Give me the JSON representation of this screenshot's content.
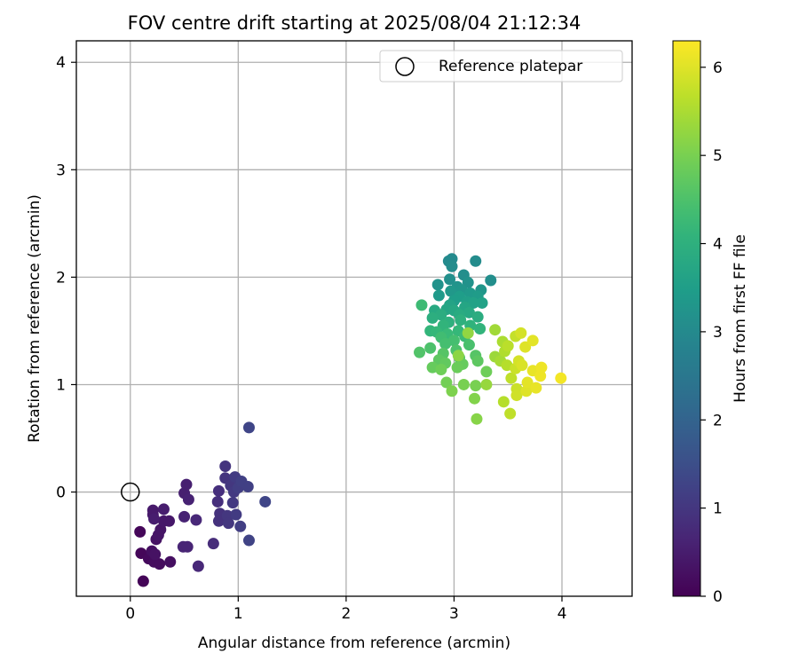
{
  "chart_data": {
    "type": "scatter",
    "title": "FOV centre drift starting at 2025/08/04 21:12:34",
    "xlabel": "Angular distance from reference (arcmin)",
    "ylabel": "Rotation from reference (arcmin)",
    "xlim": [
      -0.5,
      4.65
    ],
    "ylim": [
      -0.97,
      4.2
    ],
    "xticks": [
      0,
      1,
      2,
      3,
      4
    ],
    "xtick_labels": [
      "0",
      "1",
      "2",
      "3",
      "4"
    ],
    "yticks": [
      0,
      1,
      2,
      3,
      4
    ],
    "ytick_labels": [
      "0",
      "1",
      "2",
      "3",
      "4"
    ],
    "grid": true,
    "legend": {
      "position": "top-right",
      "entries": [
        "Reference platepar"
      ]
    },
    "reference_point": {
      "x": 0,
      "y": 0
    },
    "colorbar": {
      "label": "Hours from first FF file",
      "colormap": "viridis",
      "range": [
        0,
        6.3
      ],
      "ticks": [
        0,
        1,
        2,
        3,
        4,
        5,
        6
      ],
      "tick_labels": [
        "0",
        "1",
        "2",
        "3",
        "4",
        "5",
        "6"
      ]
    },
    "points": [
      {
        "x": 0.12,
        "y": -0.83,
        "c": 0.05
      },
      {
        "x": 0.1,
        "y": -0.57,
        "c": 0.1
      },
      {
        "x": 0.09,
        "y": -0.37,
        "c": 0.1
      },
      {
        "x": 0.17,
        "y": -0.62,
        "c": 0.15
      },
      {
        "x": 0.22,
        "y": -0.65,
        "c": 0.2
      },
      {
        "x": 0.27,
        "y": -0.67,
        "c": 0.2
      },
      {
        "x": 0.37,
        "y": -0.65,
        "c": 0.25
      },
      {
        "x": 0.2,
        "y": -0.55,
        "c": 0.25
      },
      {
        "x": 0.23,
        "y": -0.58,
        "c": 0.3
      },
      {
        "x": 0.24,
        "y": -0.44,
        "c": 0.3
      },
      {
        "x": 0.26,
        "y": -0.4,
        "c": 0.35
      },
      {
        "x": 0.28,
        "y": -0.35,
        "c": 0.35
      },
      {
        "x": 0.31,
        "y": -0.27,
        "c": 0.4
      },
      {
        "x": 0.36,
        "y": -0.27,
        "c": 0.4
      },
      {
        "x": 0.21,
        "y": -0.17,
        "c": 0.45
      },
      {
        "x": 0.21,
        "y": -0.21,
        "c": 0.45
      },
      {
        "x": 0.22,
        "y": -0.25,
        "c": 0.5
      },
      {
        "x": 0.31,
        "y": -0.16,
        "c": 0.5
      },
      {
        "x": 0.5,
        "y": -0.01,
        "c": 0.55
      },
      {
        "x": 0.52,
        "y": 0.07,
        "c": 0.55
      },
      {
        "x": 0.54,
        "y": -0.07,
        "c": 0.6
      },
      {
        "x": 0.5,
        "y": -0.23,
        "c": 0.6
      },
      {
        "x": 0.49,
        "y": -0.51,
        "c": 0.65
      },
      {
        "x": 0.53,
        "y": -0.51,
        "c": 0.65
      },
      {
        "x": 0.63,
        "y": -0.69,
        "c": 0.7
      },
      {
        "x": 0.61,
        "y": -0.26,
        "c": 0.7
      },
      {
        "x": 0.77,
        "y": -0.48,
        "c": 0.8
      },
      {
        "x": 0.81,
        "y": -0.09,
        "c": 0.85
      },
      {
        "x": 0.82,
        "y": 0.01,
        "c": 0.85
      },
      {
        "x": 0.83,
        "y": -0.2,
        "c": 0.9
      },
      {
        "x": 0.82,
        "y": -0.27,
        "c": 0.9
      },
      {
        "x": 0.88,
        "y": 0.24,
        "c": 0.95
      },
      {
        "x": 0.88,
        "y": 0.13,
        "c": 0.95
      },
      {
        "x": 0.9,
        "y": -0.22,
        "c": 1.0
      },
      {
        "x": 0.91,
        "y": -0.29,
        "c": 1.0
      },
      {
        "x": 0.93,
        "y": 0.06,
        "c": 1.0
      },
      {
        "x": 0.95,
        "y": -0.1,
        "c": 1.05
      },
      {
        "x": 0.96,
        "y": 0.0,
        "c": 1.05
      },
      {
        "x": 0.97,
        "y": 0.14,
        "c": 1.1
      },
      {
        "x": 0.98,
        "y": -0.21,
        "c": 1.1
      },
      {
        "x": 1.02,
        "y": -0.32,
        "c": 1.15
      },
      {
        "x": 1.0,
        "y": 0.04,
        "c": 1.15
      },
      {
        "x": 1.03,
        "y": 0.1,
        "c": 1.2
      },
      {
        "x": 1.09,
        "y": 0.05,
        "c": 1.2
      },
      {
        "x": 1.1,
        "y": -0.45,
        "c": 1.25
      },
      {
        "x": 1.1,
        "y": 0.6,
        "c": 1.3
      },
      {
        "x": 1.25,
        "y": -0.09,
        "c": 1.3
      },
      {
        "x": 2.98,
        "y": 2.17,
        "c": 3.0
      },
      {
        "x": 2.95,
        "y": 2.15,
        "c": 3.0
      },
      {
        "x": 3.2,
        "y": 2.15,
        "c": 3.05
      },
      {
        "x": 2.98,
        "y": 2.1,
        "c": 3.05
      },
      {
        "x": 3.09,
        "y": 2.02,
        "c": 3.1
      },
      {
        "x": 3.34,
        "y": 1.97,
        "c": 3.1
      },
      {
        "x": 2.96,
        "y": 1.98,
        "c": 3.15
      },
      {
        "x": 3.13,
        "y": 1.95,
        "c": 3.2
      },
      {
        "x": 2.85,
        "y": 1.93,
        "c": 3.2
      },
      {
        "x": 3.03,
        "y": 1.91,
        "c": 3.25
      },
      {
        "x": 3.07,
        "y": 1.88,
        "c": 3.3
      },
      {
        "x": 3.25,
        "y": 1.88,
        "c": 3.3
      },
      {
        "x": 2.97,
        "y": 1.87,
        "c": 3.35
      },
      {
        "x": 3.15,
        "y": 1.85,
        "c": 3.4
      },
      {
        "x": 2.86,
        "y": 1.83,
        "c": 3.4
      },
      {
        "x": 3.22,
        "y": 1.82,
        "c": 3.45
      },
      {
        "x": 3.05,
        "y": 1.82,
        "c": 3.5
      },
      {
        "x": 3.0,
        "y": 1.78,
        "c": 3.5
      },
      {
        "x": 3.12,
        "y": 1.77,
        "c": 3.55
      },
      {
        "x": 3.18,
        "y": 1.76,
        "c": 3.6
      },
      {
        "x": 3.26,
        "y": 1.76,
        "c": 3.6
      },
      {
        "x": 2.96,
        "y": 1.74,
        "c": 3.65
      },
      {
        "x": 3.1,
        "y": 1.72,
        "c": 3.7
      },
      {
        "x": 2.93,
        "y": 1.7,
        "c": 3.7
      },
      {
        "x": 3.0,
        "y": 1.69,
        "c": 3.75
      },
      {
        "x": 2.82,
        "y": 1.69,
        "c": 3.8
      },
      {
        "x": 3.14,
        "y": 1.67,
        "c": 3.8
      },
      {
        "x": 3.05,
        "y": 1.65,
        "c": 3.85
      },
      {
        "x": 2.88,
        "y": 1.65,
        "c": 3.9
      },
      {
        "x": 3.22,
        "y": 1.63,
        "c": 3.9
      },
      {
        "x": 2.8,
        "y": 1.62,
        "c": 3.95
      },
      {
        "x": 3.06,
        "y": 1.6,
        "c": 4.0
      },
      {
        "x": 2.95,
        "y": 1.58,
        "c": 4.0
      },
      {
        "x": 3.15,
        "y": 1.55,
        "c": 4.05
      },
      {
        "x": 2.9,
        "y": 1.55,
        "c": 4.1
      },
      {
        "x": 3.24,
        "y": 1.52,
        "c": 4.1
      },
      {
        "x": 2.78,
        "y": 1.5,
        "c": 4.15
      },
      {
        "x": 3.04,
        "y": 1.5,
        "c": 4.2
      },
      {
        "x": 2.84,
        "y": 1.49,
        "c": 4.2
      },
      {
        "x": 2.94,
        "y": 1.47,
        "c": 4.25
      },
      {
        "x": 2.7,
        "y": 1.74,
        "c": 4.3
      },
      {
        "x": 3.1,
        "y": 1.45,
        "c": 4.3
      },
      {
        "x": 2.88,
        "y": 1.44,
        "c": 4.35
      },
      {
        "x": 3.0,
        "y": 1.41,
        "c": 4.4
      },
      {
        "x": 2.92,
        "y": 1.38,
        "c": 4.4
      },
      {
        "x": 3.14,
        "y": 1.37,
        "c": 4.45
      },
      {
        "x": 2.78,
        "y": 1.34,
        "c": 4.5
      },
      {
        "x": 3.02,
        "y": 1.32,
        "c": 4.5
      },
      {
        "x": 2.68,
        "y": 1.3,
        "c": 4.55
      },
      {
        "x": 2.9,
        "y": 1.29,
        "c": 4.6
      },
      {
        "x": 3.2,
        "y": 1.27,
        "c": 4.6
      },
      {
        "x": 3.05,
        "y": 1.25,
        "c": 4.65
      },
      {
        "x": 2.86,
        "y": 1.23,
        "c": 4.7
      },
      {
        "x": 3.22,
        "y": 1.22,
        "c": 4.7
      },
      {
        "x": 2.92,
        "y": 1.2,
        "c": 4.75
      },
      {
        "x": 3.08,
        "y": 1.19,
        "c": 4.8
      },
      {
        "x": 2.8,
        "y": 1.16,
        "c": 4.8
      },
      {
        "x": 3.03,
        "y": 1.16,
        "c": 4.85
      },
      {
        "x": 2.88,
        "y": 1.14,
        "c": 4.9
      },
      {
        "x": 3.3,
        "y": 1.12,
        "c": 4.9
      },
      {
        "x": 2.93,
        "y": 1.02,
        "c": 4.95
      },
      {
        "x": 3.09,
        "y": 1.0,
        "c": 5.0
      },
      {
        "x": 3.2,
        "y": 0.99,
        "c": 5.0
      },
      {
        "x": 2.98,
        "y": 0.94,
        "c": 5.05
      },
      {
        "x": 3.19,
        "y": 0.87,
        "c": 5.1
      },
      {
        "x": 3.21,
        "y": 0.68,
        "c": 5.15
      },
      {
        "x": 3.04,
        "y": 1.27,
        "c": 5.2
      },
      {
        "x": 3.13,
        "y": 1.48,
        "c": 5.25
      },
      {
        "x": 3.3,
        "y": 1.0,
        "c": 5.3
      },
      {
        "x": 3.38,
        "y": 1.26,
        "c": 5.35
      },
      {
        "x": 3.38,
        "y": 1.51,
        "c": 5.4
      },
      {
        "x": 3.43,
        "y": 1.22,
        "c": 5.45
      },
      {
        "x": 3.45,
        "y": 1.4,
        "c": 5.5
      },
      {
        "x": 3.47,
        "y": 1.31,
        "c": 5.55
      },
      {
        "x": 3.49,
        "y": 1.18,
        "c": 5.6
      },
      {
        "x": 3.46,
        "y": 0.84,
        "c": 5.6
      },
      {
        "x": 3.5,
        "y": 1.36,
        "c": 5.65
      },
      {
        "x": 3.53,
        "y": 1.06,
        "c": 5.7
      },
      {
        "x": 3.52,
        "y": 0.73,
        "c": 5.7
      },
      {
        "x": 3.57,
        "y": 1.45,
        "c": 5.75
      },
      {
        "x": 3.57,
        "y": 1.15,
        "c": 5.8
      },
      {
        "x": 3.58,
        "y": 0.96,
        "c": 5.8
      },
      {
        "x": 3.58,
        "y": 0.9,
        "c": 5.85
      },
      {
        "x": 3.6,
        "y": 1.22,
        "c": 5.9
      },
      {
        "x": 3.62,
        "y": 1.48,
        "c": 5.9
      },
      {
        "x": 3.63,
        "y": 1.18,
        "c": 5.95
      },
      {
        "x": 3.66,
        "y": 1.35,
        "c": 6.0
      },
      {
        "x": 3.67,
        "y": 0.94,
        "c": 6.0
      },
      {
        "x": 3.68,
        "y": 1.02,
        "c": 6.05
      },
      {
        "x": 3.73,
        "y": 1.41,
        "c": 6.05
      },
      {
        "x": 3.76,
        "y": 0.97,
        "c": 6.1
      },
      {
        "x": 3.73,
        "y": 1.13,
        "c": 6.1
      },
      {
        "x": 3.8,
        "y": 1.08,
        "c": 6.15
      },
      {
        "x": 3.81,
        "y": 1.16,
        "c": 6.15
      },
      {
        "x": 3.99,
        "y": 1.06,
        "c": 6.2
      }
    ]
  }
}
